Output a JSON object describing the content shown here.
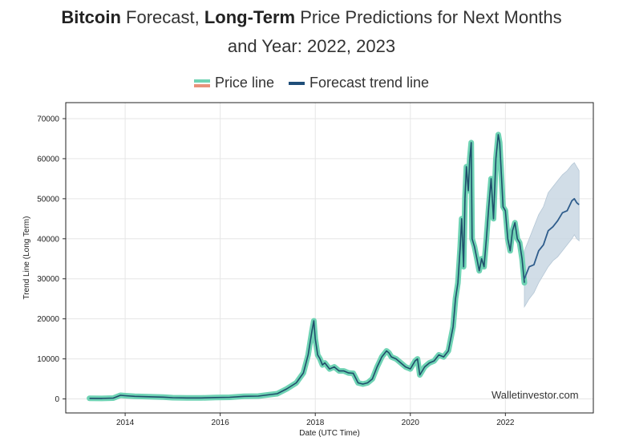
{
  "title": {
    "bold1": "Bitcoin",
    "text1": " Forecast, ",
    "bold2": "Long-Term",
    "text2": " Price Predictions for Next Months",
    "line2": "and Year: 2022, 2023"
  },
  "legend": [
    {
      "label": "Price line",
      "colors": [
        "#6fd3b4",
        "#e8917a"
      ]
    },
    {
      "label": "Forecast trend line",
      "color": "#1f4e79"
    }
  ],
  "watermark": "Walletinvestor.com",
  "colors": {
    "price_glow": "#6fd3b4",
    "price_core": "#1f4e6b",
    "forecast_line": "#2f5d8c",
    "forecast_band": "#c9d7e3",
    "grid": "#e6e6e6"
  },
  "chart_data": {
    "type": "line",
    "xlabel": "Date (UTC Time)",
    "ylabel": "Trend Line (Long Term)",
    "xlim": [
      2012.75,
      2023.85
    ],
    "ylim": [
      -3500,
      74000
    ],
    "xticks": [
      2014,
      2016,
      2018,
      2020,
      2022
    ],
    "yticks": [
      0,
      10000,
      20000,
      30000,
      40000,
      50000,
      60000,
      70000
    ],
    "grid": true,
    "legend_position": "top-center",
    "series": [
      {
        "name": "Price line",
        "x": [
          2013.25,
          2013.5,
          2013.75,
          2013.9,
          2014.0,
          2014.2,
          2014.5,
          2014.8,
          2015.0,
          2015.3,
          2015.6,
          2015.9,
          2016.2,
          2016.5,
          2016.8,
          2017.0,
          2017.2,
          2017.4,
          2017.6,
          2017.75,
          2017.85,
          2017.93,
          2017.97,
          2018.0,
          2018.05,
          2018.1,
          2018.15,
          2018.2,
          2018.3,
          2018.4,
          2018.5,
          2018.6,
          2018.7,
          2018.8,
          2018.9,
          2019.0,
          2019.1,
          2019.2,
          2019.3,
          2019.4,
          2019.5,
          2019.55,
          2019.6,
          2019.7,
          2019.8,
          2019.9,
          2020.0,
          2020.1,
          2020.15,
          2020.2,
          2020.3,
          2020.4,
          2020.5,
          2020.6,
          2020.7,
          2020.8,
          2020.9,
          2020.95,
          2021.0,
          2021.05,
          2021.08,
          2021.12,
          2021.15,
          2021.18,
          2021.22,
          2021.25,
          2021.28,
          2021.3,
          2021.35,
          2021.4,
          2021.45,
          2021.5,
          2021.55,
          2021.6,
          2021.65,
          2021.7,
          2021.75,
          2021.8,
          2021.85,
          2021.88,
          2021.92,
          2021.95,
          2022.0,
          2022.05,
          2022.1,
          2022.15,
          2022.2,
          2022.25,
          2022.3,
          2022.35,
          2022.4
        ],
        "y": [
          150,
          120,
          200,
          900,
          800,
          650,
          550,
          450,
          300,
          250,
          250,
          350,
          400,
          650,
          700,
          1000,
          1300,
          2500,
          4000,
          6500,
          11000,
          17000,
          19500,
          15000,
          11000,
          10000,
          8500,
          9000,
          7500,
          8000,
          7000,
          7000,
          6500,
          6400,
          4000,
          3700,
          4000,
          5000,
          8000,
          10500,
          12000,
          11500,
          10500,
          10000,
          9000,
          8000,
          7500,
          9500,
          10000,
          6000,
          8000,
          9000,
          9500,
          11000,
          10500,
          12000,
          18000,
          25000,
          29000,
          38000,
          45000,
          33000,
          50000,
          58000,
          52000,
          60000,
          64000,
          40000,
          38000,
          35000,
          32000,
          35000,
          33000,
          40000,
          48000,
          55000,
          45000,
          60000,
          66000,
          64000,
          55000,
          48000,
          47000,
          40000,
          37000,
          42000,
          44000,
          40000,
          39000,
          35000,
          29000
        ]
      },
      {
        "name": "Forecast trend line",
        "x": [
          2022.4,
          2022.5,
          2022.6,
          2022.7,
          2022.8,
          2022.9,
          2023.0,
          2023.1,
          2023.2,
          2023.3,
          2023.4,
          2023.45,
          2023.5,
          2023.55
        ],
        "y": [
          30000,
          33000,
          33500,
          37000,
          38500,
          42000,
          43000,
          44500,
          46500,
          47000,
          49500,
          50000,
          49000,
          48500
        ],
        "band_upper": [
          37000,
          40000,
          43000,
          46000,
          48000,
          51500,
          53000,
          54500,
          56000,
          57000,
          58500,
          59000,
          58000,
          57000
        ],
        "band_lower": [
          23000,
          25000,
          26500,
          29000,
          31000,
          33000,
          34500,
          35500,
          37000,
          38500,
          40000,
          41000,
          40000,
          39500
        ]
      }
    ]
  }
}
